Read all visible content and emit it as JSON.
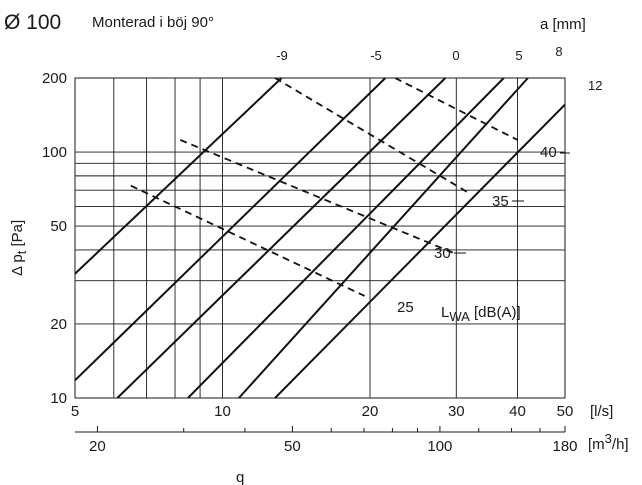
{
  "header": {
    "diameter": "Ø 100",
    "subtitle": "Monterad i böj 90°",
    "a_label": "a [mm]"
  },
  "chart_data": {
    "type": "line",
    "x_axis": {
      "scale": "log",
      "range": [
        5,
        50
      ],
      "ticks": [
        5,
        10,
        20,
        30,
        40,
        50
      ],
      "tick_labels": [
        "5",
        "10",
        "20",
        "30",
        "40",
        "50"
      ],
      "unit": "[l/s]",
      "label": "q"
    },
    "x2_axis": {
      "scale": "log",
      "ticks": [
        20,
        50,
        100,
        180
      ],
      "tick_labels": [
        "20",
        "50",
        "100",
        "180"
      ],
      "unit_base": "[m",
      "unit_sup": "3",
      "unit_tail": "/h]"
    },
    "y_axis": {
      "scale": "log",
      "range": [
        10,
        200
      ],
      "ticks": [
        10,
        20,
        50,
        100,
        200
      ],
      "tick_labels": [
        "10",
        "20",
        "50",
        "100",
        "200"
      ],
      "label_main": "Δ p",
      "label_sub": "t",
      "label_unit": "[Pa]"
    },
    "grid": true,
    "damper_series": [
      {
        "name": "-9",
        "points": [
          [
            5,
            32
          ],
          [
            13.2,
            200
          ]
        ]
      },
      {
        "name": "-5",
        "points": [
          [
            5,
            11.8
          ],
          [
            21.5,
            200
          ]
        ]
      },
      {
        "name": "0",
        "points": [
          [
            6.1,
            10
          ],
          [
            28.5,
            200
          ]
        ]
      },
      {
        "name": "5",
        "points": [
          [
            8.5,
            10
          ],
          [
            37.5,
            200
          ]
        ]
      },
      {
        "name": "8",
        "points": [
          [
            10.8,
            10
          ],
          [
            42,
            200
          ]
        ]
      },
      {
        "name": "12",
        "points": [
          [
            12.8,
            10
          ],
          [
            50,
            156
          ]
        ]
      }
    ],
    "sound_series": [
      {
        "name": "25",
        "points": [
          [
            6.5,
            73
          ],
          [
            19.5,
            26
          ]
        ]
      },
      {
        "name": "30",
        "points": [
          [
            8.2,
            112
          ],
          [
            29.5,
            39
          ]
        ]
      },
      {
        "name": "35",
        "points": [
          [
            12.8,
            200
          ],
          [
            31.5,
            69
          ]
        ]
      },
      {
        "name": "40",
        "points": [
          [
            22.5,
            200
          ],
          [
            40,
            112
          ]
        ]
      }
    ],
    "sound_label_main": "L",
    "sound_label_sub": "WA",
    "sound_label_unit": "[dB(A)]"
  }
}
